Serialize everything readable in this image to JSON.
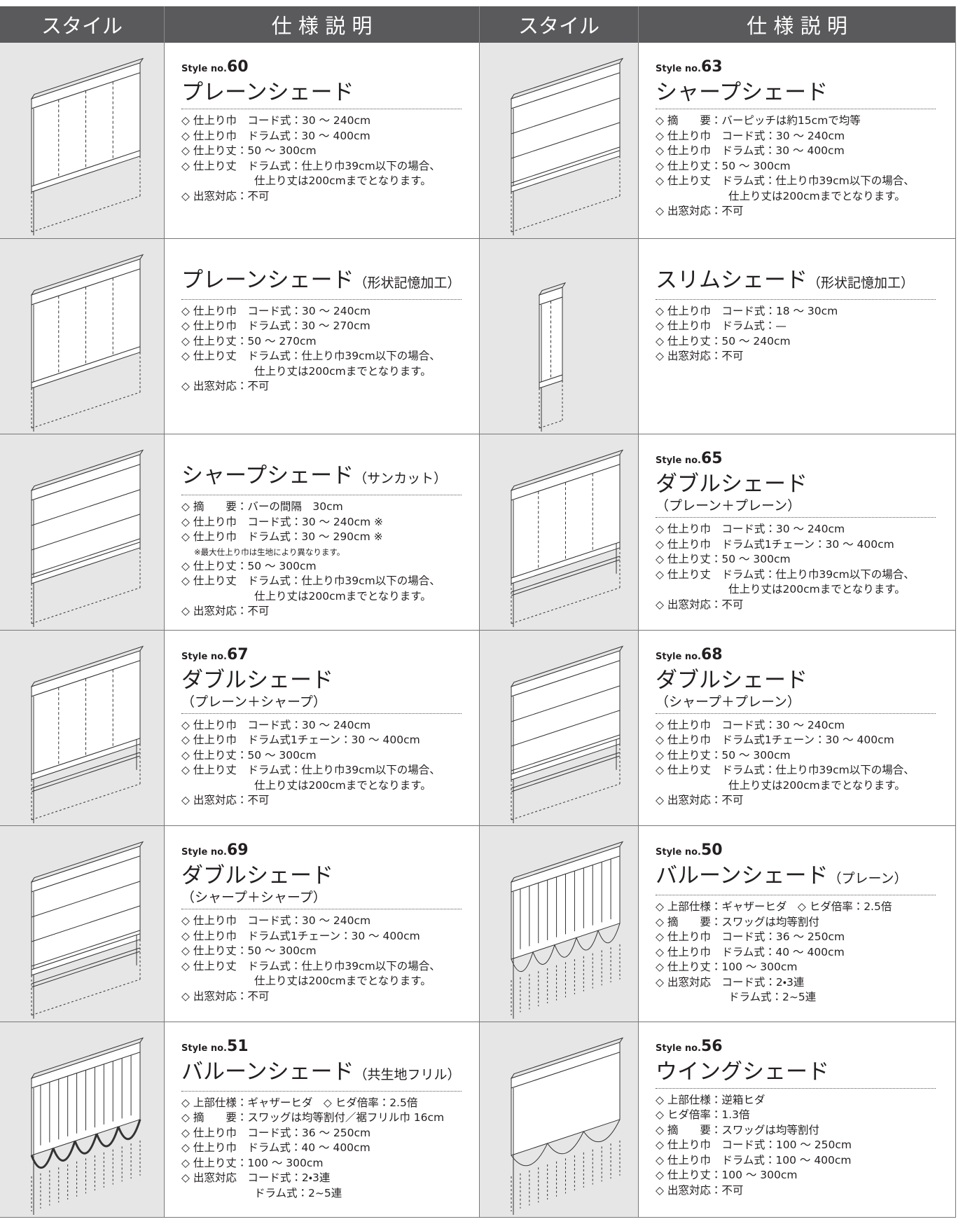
{
  "header": [
    "スタイル",
    "仕 様 説 明",
    "スタイル",
    "仕 様 説 明"
  ],
  "cells": [
    {
      "style": {
        "prefix": "Style no.",
        "number": "60"
      },
      "title": "プレーンシェード",
      "specs": [
        "◇ 仕上り巾　コード式：30 ～ 240cm",
        "◇ 仕上り巾　ドラム式：30 ～ 400cm",
        "◇ 仕上り丈：50 ～ 300cm",
        "◇ 仕上り丈　ドラム式：仕上り巾39cm以下の場合、",
        "仕上り丈は200cmまでとなります。",
        "◇ 出窓対応：不可"
      ]
    },
    {
      "style": {
        "prefix": "Style no.",
        "number": "63"
      },
      "title": "シャープシェード",
      "specs": [
        "◇ 摘　　要：バーピッチは約15cmで均等",
        "◇ 仕上り巾　コード式：30 ～ 240cm",
        "◇ 仕上り巾　ドラム式：30 ～ 400cm",
        "◇ 仕上り丈：50 ～ 300cm",
        "◇ 仕上り丈　ドラム式：仕上り巾39cm以下の場合、",
        "仕上り丈は200cmまでとなります。",
        "◇ 出窓対応：不可"
      ]
    },
    {
      "title": "プレーンシェード",
      "subtitle": "（形状記憶加工）",
      "specs": [
        "◇ 仕上り巾　コード式：30 ～ 240cm",
        "◇ 仕上り巾　ドラム式：30 ～ 270cm",
        "◇ 仕上り丈：50 ～ 270cm",
        "◇ 仕上り丈　ドラム式：仕上り巾39cm以下の場合、",
        "仕上り丈は200cmまでとなります。",
        "◇ 出窓対応：不可"
      ]
    },
    {
      "title": "スリムシェード",
      "subtitle": "（形状記憶加工）",
      "specs": [
        "◇ 仕上り巾　コード式：18 ～ 30cm",
        "◇ 仕上り巾　ドラム式：—",
        "◇ 仕上り丈：50 ～ 240cm",
        "◇ 出窓対応：不可"
      ]
    },
    {
      "title": "シャープシェード",
      "subtitle": "（サンカット）",
      "specs": [
        "◇ 摘　　要：バーの間隔　30cm",
        "◇ 仕上り巾　コード式：30 ～ 240cm ※",
        "◇ 仕上り巾　ドラム式：30 ～ 290cm ※",
        "※最大仕上り巾は生地により異なります。",
        "◇ 仕上り丈：50 ～ 300cm",
        "◇ 仕上り丈　ドラム式：仕上り巾39cm以下の場合、",
        "仕上り丈は200cmまでとなります。",
        "◇ 出窓対応：不可"
      ]
    },
    {
      "style": {
        "prefix": "Style no.",
        "number": "65"
      },
      "title": "ダブルシェード",
      "note": "（プレーン＋プレーン）",
      "specs": [
        "◇ 仕上り巾　コード式：30 ～ 240cm",
        "◇ 仕上り巾　ドラム式1チェーン：30 ～ 400cm",
        "◇ 仕上り丈：50 ～ 300cm",
        "◇ 仕上り丈　ドラム式：仕上り巾39cm以下の場合、",
        "仕上り丈は200cmまでとなります。",
        "◇ 出窓対応：不可"
      ]
    },
    {
      "style": {
        "prefix": "Style no.",
        "number": "67"
      },
      "title": "ダブルシェード",
      "note": "（プレーン＋シャープ）",
      "specs": [
        "◇ 仕上り巾　コード式：30 ～ 240cm",
        "◇ 仕上り巾　ドラム式1チェーン：30 ～ 400cm",
        "◇ 仕上り丈：50 ～ 300cm",
        "◇ 仕上り丈　ドラム式：仕上り巾39cm以下の場合、",
        "仕上り丈は200cmまでとなります。",
        "◇ 出窓対応：不可"
      ]
    },
    {
      "style": {
        "prefix": "Style no.",
        "number": "68"
      },
      "title": "ダブルシェード",
      "note": "（シャープ＋プレーン）",
      "specs": [
        "◇ 仕上り巾　コード式：30 ～ 240cm",
        "◇ 仕上り巾　ドラム式1チェーン：30 ～ 400cm",
        "◇ 仕上り丈：50 ～ 300cm",
        "◇ 仕上り丈　ドラム式：仕上り巾39cm以下の場合、",
        "仕上り丈は200cmまでとなります。",
        "◇ 出窓対応：不可"
      ]
    },
    {
      "style": {
        "prefix": "Style no.",
        "number": "69"
      },
      "title": "ダブルシェード",
      "note": "（シャープ＋シャープ）",
      "specs": [
        "◇ 仕上り巾　コード式：30 ～ 240cm",
        "◇ 仕上り巾　ドラム式1チェーン：30 ～ 400cm",
        "◇ 仕上り丈：50 ～ 300cm",
        "◇ 仕上り丈　ドラム式：仕上り巾39cm以下の場合、",
        "仕上り丈は200cmまでとなります。",
        "◇ 出窓対応：不可"
      ]
    },
    {
      "style": {
        "prefix": "Style no.",
        "number": "50"
      },
      "title": "バルーンシェード",
      "subtitle": "（プレーン）",
      "specs": [
        "◇ 上部仕様：ギャザーヒダ　◇ ヒダ倍率：2.5倍",
        "◇ 摘　　要：スワッグは均等割付",
        "◇ 仕上り巾　コード式：36 ～ 250cm",
        "◇ 仕上り巾　ドラム式：40 ～ 400cm",
        "◇ 仕上り丈：100 ～ 300cm",
        "◇ 出窓対応　コード式：2・3連",
        "ドラム式：2~5連"
      ]
    },
    {
      "style": {
        "prefix": "Style no.",
        "number": "51"
      },
      "title": "バルーンシェード",
      "subtitle": "（共生地フリル）",
      "specs": [
        "◇ 上部仕様：ギャザーヒダ　◇ ヒダ倍率：2.5倍",
        "◇ 摘　　要：スワッグは均等割付／裾フリル巾 16cm",
        "◇ 仕上り巾　コード式：36 ～ 250cm",
        "◇ 仕上り巾　ドラム式：40 ～ 400cm",
        "◇ 仕上り丈：100 ～ 300cm",
        "◇ 出窓対応　コード式：2・3連",
        "ドラム式：2~5連"
      ]
    },
    {
      "style": {
        "prefix": "Style no.",
        "number": "56"
      },
      "title": "ウイングシェード",
      "specs": [
        "◇ 上部仕様：逆箱ヒダ",
        "◇ ヒダ倍率：1.3倍",
        "◇ 摘　　要：スワッグは均等割付",
        "◇ 仕上り巾　コード式：100 ～ 250cm",
        "◇ 仕上り巾　ドラム式：100 ～ 400cm",
        "◇ 仕上り丈：100 ～ 300cm",
        "◇ 出窓対応：不可"
      ]
    }
  ]
}
